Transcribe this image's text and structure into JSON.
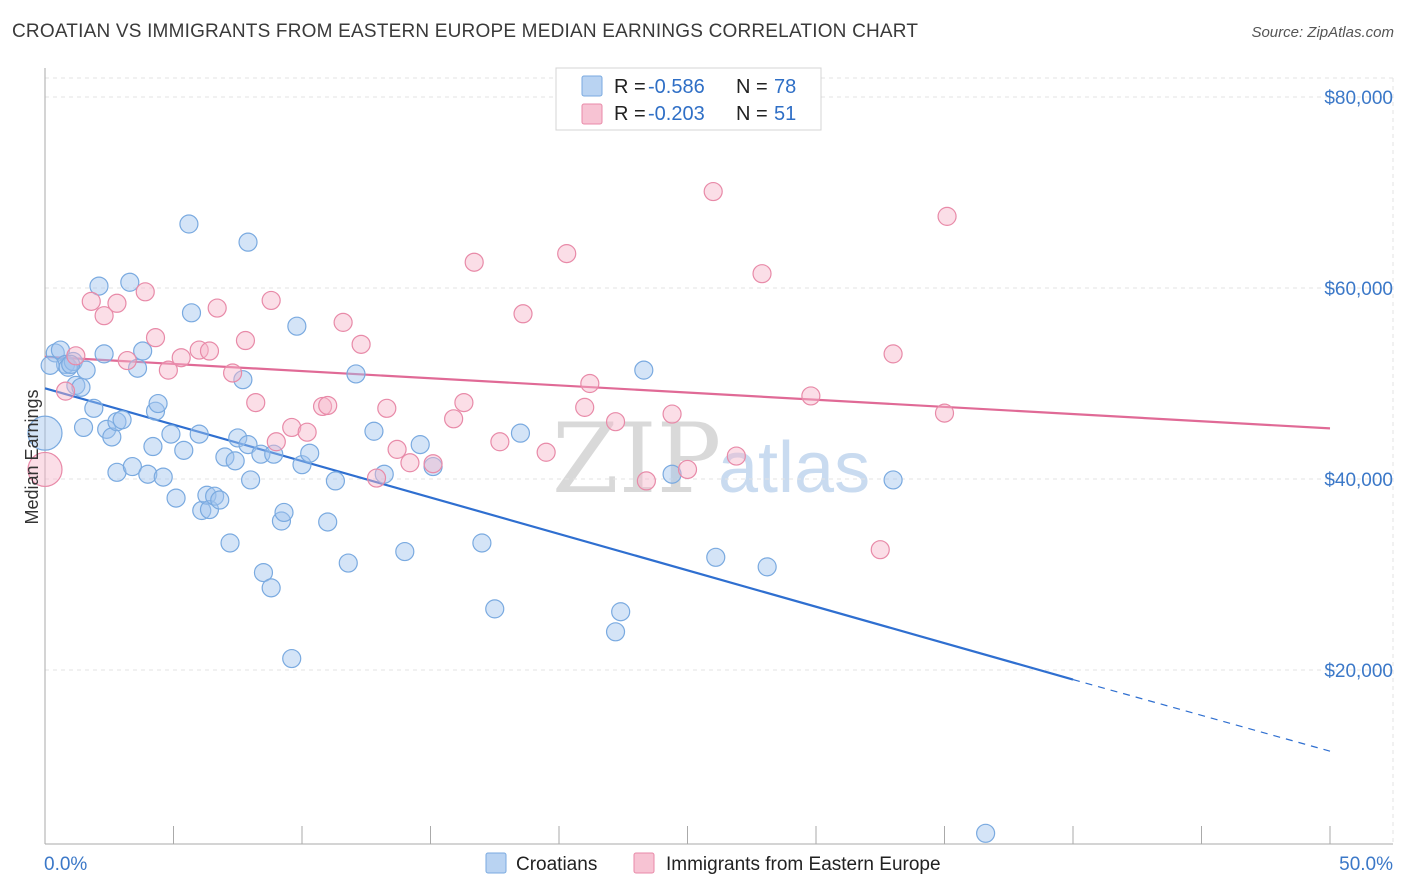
{
  "title": "CROATIAN VS IMMIGRANTS FROM EASTERN EUROPE MEDIAN EARNINGS CORRELATION CHART",
  "source": "Source: ZipAtlas.com",
  "watermark": {
    "zip": "ZIP",
    "atlas": "atlas"
  },
  "chart_data": {
    "type": "scatter",
    "title": "CROATIAN VS IMMIGRANTS FROM EASTERN EUROPE MEDIAN EARNINGS CORRELATION CHART",
    "xlabel": "",
    "ylabel": "Median Earnings",
    "xlim": [
      0,
      50
    ],
    "ylim": [
      0,
      82000
    ],
    "x_tick_labels": [
      "0.0%",
      "50.0%"
    ],
    "y_ticks": [
      20000,
      40000,
      60000,
      80000
    ],
    "y_tick_labels": [
      "$20,000",
      "$40,000",
      "$60,000",
      "$80,000"
    ],
    "grid": true,
    "legend": [
      {
        "name": "Croatians",
        "r_label": "R =",
        "r": "-0.586",
        "n_label": "N =",
        "n": "78",
        "color": "#7aaae0",
        "fill": "#b9d3f2"
      },
      {
        "name": "Immigrants from Eastern Europe",
        "r_label": "R =",
        "r": "-0.203",
        "n_label": "N =",
        "n": "51",
        "color": "#e88aa8",
        "fill": "#f7c3d3"
      }
    ],
    "series": [
      {
        "name": "Croatians",
        "color": "#7aaae0",
        "trend": {
          "x0": 0,
          "y0": 49500,
          "x1": 40,
          "y1": 19000,
          "x_end": 50,
          "y_end": 11500
        },
        "points": [
          [
            0,
            44800
          ],
          [
            0.4,
            53200
          ],
          [
            0.6,
            53500
          ],
          [
            0.8,
            52000
          ],
          [
            0.9,
            51700
          ],
          [
            1.1,
            52300
          ],
          [
            1.2,
            49800
          ],
          [
            1.4,
            49600
          ],
          [
            1.6,
            51400
          ],
          [
            1.9,
            47400
          ],
          [
            1.5,
            45400
          ],
          [
            2.3,
            53100
          ],
          [
            2.4,
            45200
          ],
          [
            2.6,
            44400
          ],
          [
            2.8,
            46000
          ],
          [
            3.0,
            46200
          ],
          [
            2.8,
            40700
          ],
          [
            3.4,
            41300
          ],
          [
            3.6,
            51600
          ],
          [
            3.8,
            53400
          ],
          [
            4.0,
            40500
          ],
          [
            4.2,
            43400
          ],
          [
            4.3,
            47100
          ],
          [
            4.4,
            47900
          ],
          [
            4.6,
            40200
          ],
          [
            4.9,
            44700
          ],
          [
            5.1,
            38000
          ],
          [
            5.4,
            43000
          ],
          [
            5.7,
            57400
          ],
          [
            6.0,
            44700
          ],
          [
            6.1,
            36700
          ],
          [
            6.3,
            38300
          ],
          [
            6.4,
            36800
          ],
          [
            6.6,
            38200
          ],
          [
            6.8,
            37800
          ],
          [
            7.0,
            42300
          ],
          [
            7.2,
            33300
          ],
          [
            7.4,
            41900
          ],
          [
            7.5,
            44300
          ],
          [
            7.7,
            50400
          ],
          [
            7.9,
            43600
          ],
          [
            8.0,
            39900
          ],
          [
            8.4,
            42600
          ],
          [
            8.5,
            30200
          ],
          [
            8.8,
            28600
          ],
          [
            8.9,
            42600
          ],
          [
            9.2,
            35600
          ],
          [
            9.3,
            36500
          ],
          [
            9.6,
            21200
          ],
          [
            9.8,
            56000
          ],
          [
            10.0,
            41500
          ],
          [
            10.3,
            42700
          ],
          [
            3.3,
            60600
          ],
          [
            2.1,
            60200
          ],
          [
            5.6,
            66700
          ],
          [
            7.9,
            64800
          ],
          [
            11.0,
            35500
          ],
          [
            11.3,
            39800
          ],
          [
            11.8,
            31200
          ],
          [
            12.1,
            51000
          ],
          [
            12.8,
            45000
          ],
          [
            13.2,
            40500
          ],
          [
            14.0,
            32400
          ],
          [
            14.6,
            43600
          ],
          [
            15.1,
            41300
          ],
          [
            17.0,
            33300
          ],
          [
            17.5,
            26400
          ],
          [
            18.5,
            44800
          ],
          [
            22.2,
            24000
          ],
          [
            22.4,
            26100
          ],
          [
            23.3,
            51400
          ],
          [
            24.4,
            40500
          ],
          [
            26.1,
            31800
          ],
          [
            28.1,
            30800
          ],
          [
            33.0,
            39900
          ],
          [
            36.6,
            2900
          ],
          [
            0.2,
            51900
          ],
          [
            1.0,
            52000
          ]
        ]
      },
      {
        "name": "Immigrants from Eastern Europe",
        "color": "#e88aa8",
        "trend": {
          "x0": 0,
          "y0": 52800,
          "x1": 50,
          "y1": 45300
        },
        "points": [
          [
            0,
            41000
          ],
          [
            0.8,
            49200
          ],
          [
            1.2,
            52900
          ],
          [
            1.8,
            58600
          ],
          [
            2.3,
            57100
          ],
          [
            2.8,
            58400
          ],
          [
            3.2,
            52400
          ],
          [
            3.9,
            59600
          ],
          [
            4.3,
            54800
          ],
          [
            4.8,
            51400
          ],
          [
            5.3,
            52700
          ],
          [
            6.0,
            53500
          ],
          [
            6.4,
            53400
          ],
          [
            6.7,
            57900
          ],
          [
            7.3,
            51100
          ],
          [
            7.8,
            54500
          ],
          [
            8.2,
            48000
          ],
          [
            8.8,
            58700
          ],
          [
            9.0,
            43900
          ],
          [
            9.6,
            45400
          ],
          [
            10.2,
            44900
          ],
          [
            10.8,
            47600
          ],
          [
            11.0,
            47700
          ],
          [
            11.6,
            56400
          ],
          [
            12.3,
            54100
          ],
          [
            12.9,
            40100
          ],
          [
            13.3,
            47400
          ],
          [
            13.7,
            43100
          ],
          [
            14.2,
            41700
          ],
          [
            15.1,
            41600
          ],
          [
            15.9,
            46300
          ],
          [
            16.3,
            48000
          ],
          [
            16.7,
            62700
          ],
          [
            17.7,
            43900
          ],
          [
            18.6,
            57300
          ],
          [
            19.5,
            42800
          ],
          [
            20.3,
            63600
          ],
          [
            21.0,
            47500
          ],
          [
            21.2,
            50000
          ],
          [
            22.2,
            46000
          ],
          [
            23.4,
            39800
          ],
          [
            24.4,
            46800
          ],
          [
            25.0,
            41000
          ],
          [
            26.0,
            70100
          ],
          [
            26.9,
            42400
          ],
          [
            27.9,
            61500
          ],
          [
            29.8,
            48700
          ],
          [
            32.5,
            32600
          ],
          [
            33.0,
            53100
          ],
          [
            35.1,
            67500
          ],
          [
            35.0,
            46900
          ]
        ]
      }
    ]
  }
}
